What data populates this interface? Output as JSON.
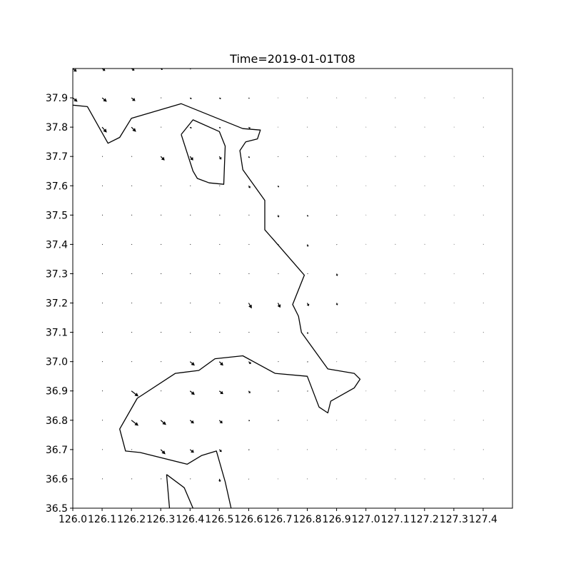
{
  "chart_data": {
    "type": "quiver",
    "title": "Time=2019-01-01T08",
    "xlabel": "",
    "ylabel": "",
    "xlim": [
      126.0,
      127.5
    ],
    "ylim": [
      36.5,
      38.0
    ],
    "grid": false,
    "x_ticks": [
      "126.0",
      "126.1",
      "126.2",
      "126.3",
      "126.4",
      "126.5",
      "126.6",
      "126.7",
      "126.8",
      "126.9",
      "127.0",
      "127.1",
      "127.2",
      "127.3",
      "127.4"
    ],
    "y_ticks": [
      "36.5",
      "36.6",
      "36.7",
      "36.8",
      "36.9",
      "37.0",
      "37.1",
      "37.2",
      "37.3",
      "37.4",
      "37.5",
      "37.6",
      "37.7",
      "37.8",
      "37.9"
    ],
    "coastlines": [
      [
        [
          126.0,
          37.875
        ],
        [
          126.05,
          37.87
        ],
        [
          126.12,
          37.745
        ],
        [
          126.16,
          37.765
        ],
        [
          126.2,
          37.83
        ],
        [
          126.37,
          37.88
        ],
        [
          126.58,
          37.795
        ],
        [
          126.64,
          37.79
        ],
        [
          126.63,
          37.76
        ],
        [
          126.59,
          37.75
        ],
        [
          126.57,
          37.72
        ],
        [
          126.58,
          37.655
        ],
        [
          126.655,
          37.55
        ],
        [
          126.655,
          37.45
        ],
        [
          126.69,
          37.41
        ],
        [
          126.79,
          37.295
        ],
        [
          126.75,
          37.195
        ],
        [
          126.77,
          37.155
        ],
        [
          126.78,
          37.1
        ],
        [
          126.87,
          36.975
        ],
        [
          126.96,
          36.96
        ],
        [
          126.98,
          36.94
        ],
        [
          126.96,
          36.91
        ],
        [
          126.88,
          36.865
        ],
        [
          126.87,
          36.825
        ],
        [
          126.84,
          36.845
        ],
        [
          126.8,
          36.95
        ],
        [
          126.69,
          36.96
        ],
        [
          126.58,
          37.02
        ],
        [
          126.485,
          37.01
        ],
        [
          126.43,
          36.97
        ],
        [
          126.35,
          36.96
        ],
        [
          126.22,
          36.875
        ],
        [
          126.16,
          36.77
        ],
        [
          126.18,
          36.695
        ],
        [
          126.23,
          36.69
        ],
        [
          126.39,
          36.65
        ],
        [
          126.44,
          36.68
        ],
        [
          126.49,
          36.695
        ],
        [
          126.52,
          36.59
        ],
        [
          126.54,
          36.5
        ]
      ],
      [
        [
          126.37,
          37.775
        ],
        [
          126.41,
          37.825
        ],
        [
          126.5,
          37.785
        ],
        [
          126.52,
          37.735
        ],
        [
          126.515,
          37.605
        ],
        [
          126.465,
          37.61
        ],
        [
          126.425,
          37.625
        ],
        [
          126.41,
          37.65
        ],
        [
          126.37,
          37.775
        ]
      ],
      [
        [
          126.32,
          36.615
        ],
        [
          126.38,
          36.57
        ],
        [
          126.41,
          36.5
        ]
      ],
      [
        [
          126.33,
          36.5
        ],
        [
          126.32,
          36.615
        ]
      ]
    ],
    "grid_x": [
      126.0,
      126.1,
      126.2,
      126.3,
      126.4,
      126.5,
      126.6,
      126.7,
      126.8,
      126.9,
      127.0,
      127.1,
      127.2,
      127.3,
      127.4,
      127.5
    ],
    "grid_y": [
      38.0,
      37.9,
      37.8,
      37.7,
      37.6,
      37.5,
      37.4,
      37.3,
      37.2,
      37.1,
      37.0,
      36.9,
      36.8,
      36.7,
      36.6,
      36.5
    ],
    "u": [
      [
        0.05,
        0.04,
        0.04,
        0.025,
        0.01,
        0,
        0,
        0,
        0,
        0,
        0,
        0,
        0,
        0,
        0,
        0
      ],
      [
        0.06,
        0.06,
        0.05,
        0,
        0.02,
        0.02,
        0.01,
        0.005,
        0.005,
        0.005,
        0.005,
        0.005,
        0.005,
        0.005,
        0.005,
        0
      ],
      [
        0,
        0.06,
        0.06,
        0,
        0.02,
        0.015,
        0.02,
        0.005,
        0.005,
        0.005,
        0.005,
        0.005,
        0.005,
        0.005,
        0.005,
        0
      ],
      [
        0,
        0,
        0,
        0.05,
        0.04,
        0.025,
        0.01,
        0.005,
        0.005,
        0.005,
        0.005,
        0.005,
        0.005,
        0.005,
        0.005,
        0
      ],
      [
        0,
        0,
        0,
        0,
        0,
        0,
        0.02,
        0.01,
        0.005,
        0.005,
        0.005,
        0.005,
        0.005,
        0.005,
        0.005,
        0
      ],
      [
        0,
        0,
        0,
        0,
        0,
        0,
        0,
        0.01,
        0.01,
        0.005,
        0.005,
        0.005,
        0.005,
        0.005,
        0.005,
        0
      ],
      [
        0,
        0,
        0,
        0,
        0,
        0,
        0,
        0,
        0.01,
        0.005,
        0.005,
        0.005,
        0.005,
        0.005,
        0.005,
        0
      ],
      [
        0,
        0,
        0,
        0,
        0,
        0,
        0,
        0,
        0,
        0.01,
        0.005,
        0.005,
        0.005,
        0.005,
        0.005,
        0
      ],
      [
        0,
        0,
        0,
        0,
        0,
        0,
        0.04,
        0.03,
        0.02,
        0.01,
        0.005,
        0.005,
        0.005,
        0.005,
        0.005,
        0
      ],
      [
        0,
        0,
        0,
        0,
        0,
        0,
        0,
        0,
        0.01,
        0.005,
        0.005,
        0.005,
        0.005,
        0.005,
        0.005,
        0.005
      ],
      [
        0,
        0,
        0,
        0,
        0.06,
        0.05,
        0.03,
        0,
        0.01,
        0.005,
        0.005,
        0.005,
        0.005,
        0.005,
        0.005,
        0.005
      ],
      [
        0,
        0,
        0.09,
        0,
        0.06,
        0.05,
        0.02,
        0.01,
        0.01,
        0.005,
        0.005,
        0.005,
        0.005,
        0.005,
        0.005,
        0.005
      ],
      [
        0,
        0,
        0.09,
        0.07,
        0.05,
        0.04,
        0.015,
        0.01,
        0.005,
        0.005,
        0.005,
        0.005,
        0.005,
        0.005,
        0.005,
        0.005
      ],
      [
        0,
        0,
        0,
        0.06,
        0.05,
        0.03,
        0.01,
        0.005,
        0.005,
        0.005,
        0.005,
        0.005,
        0.005,
        0.005,
        0.005,
        0.005
      ],
      [
        0,
        0,
        0,
        0,
        0,
        0.01,
        0.005,
        0.005,
        0.005,
        0.005,
        0.005,
        0.005,
        0.005,
        0.005,
        0.005,
        0
      ],
      [
        0,
        0,
        0,
        0,
        0,
        0,
        0,
        0,
        0,
        0,
        0,
        0,
        0,
        0,
        0,
        0
      ]
    ],
    "v": [
      [
        -0.04,
        -0.03,
        -0.025,
        -0.015,
        -0.01,
        0,
        0,
        0,
        0,
        0,
        0,
        0,
        0,
        0,
        0,
        0
      ],
      [
        -0.05,
        -0.05,
        -0.04,
        0,
        -0.015,
        -0.015,
        -0.01,
        0,
        0,
        0,
        0,
        0,
        0,
        0,
        0,
        0
      ],
      [
        0,
        -0.07,
        -0.06,
        0,
        -0.015,
        -0.015,
        -0.02,
        0,
        0,
        0,
        0,
        0,
        0,
        0,
        0,
        0
      ],
      [
        0,
        0,
        0,
        -0.05,
        -0.05,
        -0.04,
        -0.02,
        -0.005,
        -0.005,
        0,
        0,
        0,
        0,
        0,
        0,
        0
      ],
      [
        0,
        0,
        0,
        0,
        0,
        0,
        -0.03,
        -0.02,
        -0.005,
        0,
        0,
        0,
        0,
        0,
        0,
        0
      ],
      [
        0,
        0,
        0,
        0,
        0,
        0,
        0,
        -0.03,
        -0.02,
        -0.005,
        0,
        0,
        0,
        0,
        0,
        0
      ],
      [
        0,
        0,
        0,
        0,
        0,
        0,
        0,
        0,
        -0.03,
        -0.005,
        0,
        0,
        0,
        0,
        0,
        0
      ],
      [
        0,
        0,
        0,
        0,
        0,
        0,
        0,
        0,
        0,
        -0.03,
        0,
        0,
        0,
        0,
        0,
        0
      ],
      [
        0,
        0,
        0,
        0,
        0,
        0,
        -0.07,
        -0.06,
        -0.04,
        -0.03,
        0,
        0,
        0,
        0,
        0,
        0
      ],
      [
        0,
        0,
        0,
        0,
        0,
        0,
        0,
        0,
        -0.02,
        -0.005,
        0,
        0,
        0,
        0,
        0,
        0
      ],
      [
        0,
        0,
        0,
        0,
        -0.05,
        -0.05,
        -0.03,
        0,
        -0.005,
        0,
        0,
        0,
        0,
        0,
        0,
        0
      ],
      [
        0,
        0,
        -0.07,
        0,
        -0.05,
        -0.04,
        -0.03,
        -0.005,
        -0.005,
        0,
        0,
        0,
        0,
        0,
        0,
        0
      ],
      [
        0,
        0,
        -0.07,
        -0.06,
        -0.04,
        -0.04,
        -0.01,
        -0.005,
        0,
        0,
        0,
        0,
        0,
        0,
        0,
        0
      ],
      [
        0,
        0,
        0,
        -0.06,
        -0.04,
        -0.03,
        -0.005,
        0,
        0,
        0,
        0,
        0,
        0,
        0,
        0,
        0
      ],
      [
        0,
        0,
        0,
        0,
        0,
        -0.04,
        -0.005,
        0,
        0,
        0,
        0,
        0,
        0,
        0,
        0,
        0
      ],
      [
        0,
        0,
        0,
        0,
        0,
        0,
        0,
        0,
        0,
        0,
        0,
        0,
        0,
        0,
        0,
        0
      ]
    ]
  }
}
